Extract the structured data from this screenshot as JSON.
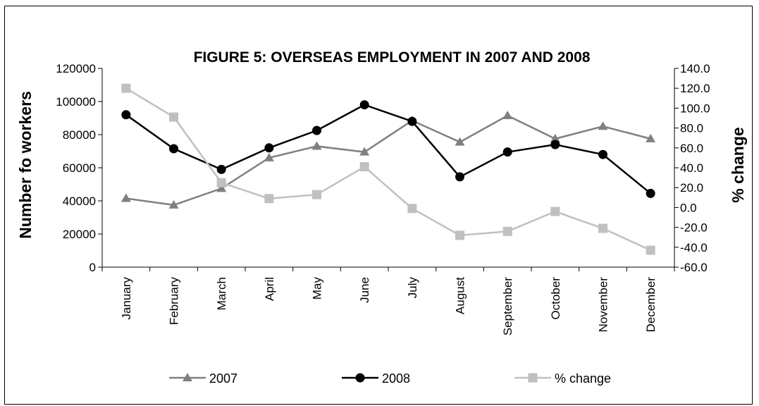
{
  "chart_data": {
    "type": "line",
    "title": "FIGURE 5: OVERSEAS EMPLOYMENT IN 2007 AND 2008",
    "ylabel": "Number fo workers",
    "y2label": "% change",
    "categories": [
      "January",
      "February",
      "March",
      "April",
      "May",
      "June",
      "July",
      "August",
      "September",
      "October",
      "November",
      "December"
    ],
    "ylim": [
      0,
      120000
    ],
    "y2lim": [
      -60,
      140
    ],
    "y_ticks": [
      "0",
      "20000",
      "40000",
      "60000",
      "80000",
      "100000",
      "120000"
    ],
    "y2_ticks": [
      "-60.0",
      "-40.0",
      "-20.0",
      "0.0",
      "20.0",
      "40.0",
      "60.0",
      "80.0",
      "100.0",
      "120.0",
      "140.0"
    ],
    "series": [
      {
        "name": "2007",
        "axis": "left",
        "color": "#808080",
        "marker": "triangle",
        "values": [
          41500,
          37500,
          47500,
          66000,
          73000,
          69500,
          88500,
          75500,
          91500,
          77500,
          85000,
          77500
        ]
      },
      {
        "name": "2008",
        "axis": "left",
        "color": "#000000",
        "marker": "circle",
        "values": [
          92000,
          71500,
          59000,
          72000,
          82500,
          98000,
          88000,
          54500,
          69500,
          74000,
          68000,
          44500
        ]
      },
      {
        "name": "% change",
        "axis": "right",
        "color": "#c0c0c0",
        "marker": "square",
        "values": [
          120.0,
          91.0,
          25.0,
          9.0,
          13.0,
          41.0,
          -1.0,
          -28.0,
          -24.0,
          -4.0,
          -21.0,
          -43.0
        ]
      }
    ],
    "grid": false,
    "legend_position": "bottom"
  }
}
